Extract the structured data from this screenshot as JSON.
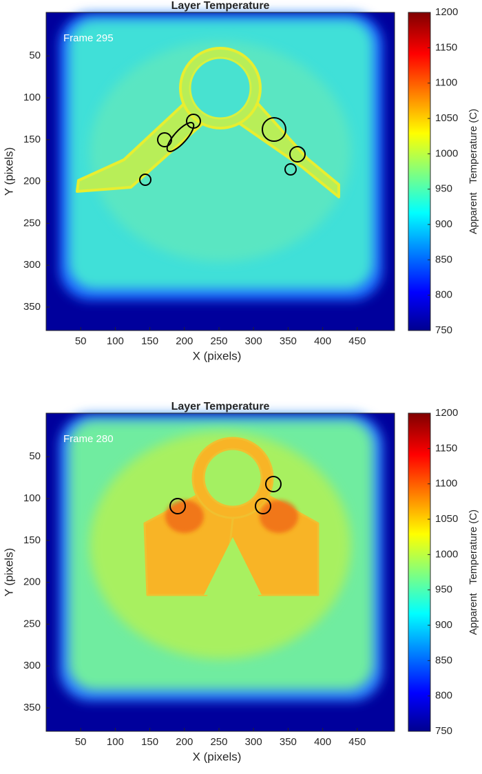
{
  "chart_data": [
    {
      "type": "heatmap",
      "title": "Layer Temperature",
      "annotation": "Frame 295",
      "xlabel": "X (pixels)",
      "ylabel": "Y (pixels)",
      "xlim": [
        0,
        504
      ],
      "ylim": [
        -2,
        378
      ],
      "yaxis_reversed": true,
      "xticks": [
        50,
        100,
        150,
        200,
        250,
        300,
        350,
        400,
        450
      ],
      "yticks": [
        50,
        100,
        150,
        200,
        250,
        300,
        350
      ],
      "colorbar": {
        "label": "Apparent   Temperature (C)",
        "colormap": "jet",
        "clim": [
          750,
          1200
        ],
        "ticks": [
          750,
          800,
          850,
          900,
          950,
          1000,
          1050,
          1100,
          1150,
          1200
        ]
      }
    },
    {
      "type": "heatmap",
      "title": "Layer Temperature",
      "annotation": "Frame 280",
      "xlabel": "X (pixels)",
      "ylabel": "Y (pixels)",
      "xlim": [
        0,
        504
      ],
      "ylim": [
        -2,
        378
      ],
      "yaxis_reversed": true,
      "xticks": [
        50,
        100,
        150,
        200,
        250,
        300,
        350,
        400,
        450
      ],
      "yticks": [
        50,
        100,
        150,
        200,
        250,
        300,
        350
      ],
      "colorbar": {
        "label": "Apparent   Temperature (C)",
        "colormap": "jet",
        "clim": [
          750,
          1200
        ],
        "ticks": [
          750,
          800,
          850,
          900,
          950,
          1000,
          1050,
          1100,
          1150,
          1200
        ]
      }
    }
  ]
}
